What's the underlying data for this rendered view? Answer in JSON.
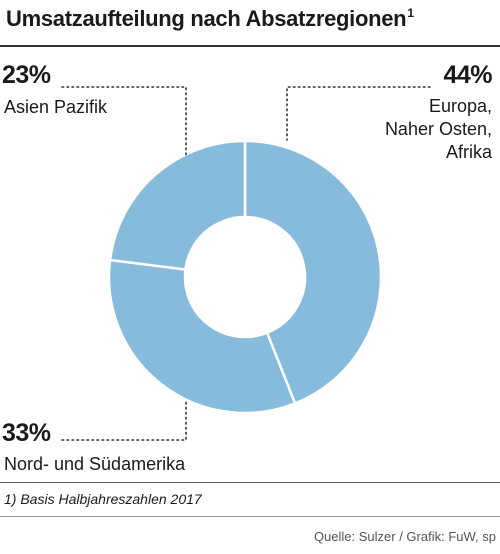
{
  "title": "Umsatzaufteilung nach Absatzregionen",
  "title_footnote_mark": "1",
  "footnote": "1) Basis Halbjahreszahlen 2017",
  "source": "Quelle: Sulzer / Grafik: FuW, sp",
  "colors": {
    "slice": "#86bbdc",
    "separator": "#ffffff",
    "leader": "#333333"
  },
  "chart_data": {
    "type": "pie",
    "variant": "donut",
    "title": "Umsatzaufteilung nach Absatzregionen",
    "slices": [
      {
        "label": "Europa, Naher Osten, Afrika",
        "label_lines": [
          "Europa,",
          "Naher Osten,",
          "Afrika"
        ],
        "value": 44,
        "value_label": "44%"
      },
      {
        "label": "Nord- und Südamerika",
        "label_lines": [
          "Nord- und Südamerika"
        ],
        "value": 33,
        "value_label": "33%"
      },
      {
        "label": "Asien Pazifik",
        "label_lines": [
          "Asien Pazifik"
        ],
        "value": 23,
        "value_label": "23%"
      }
    ]
  }
}
